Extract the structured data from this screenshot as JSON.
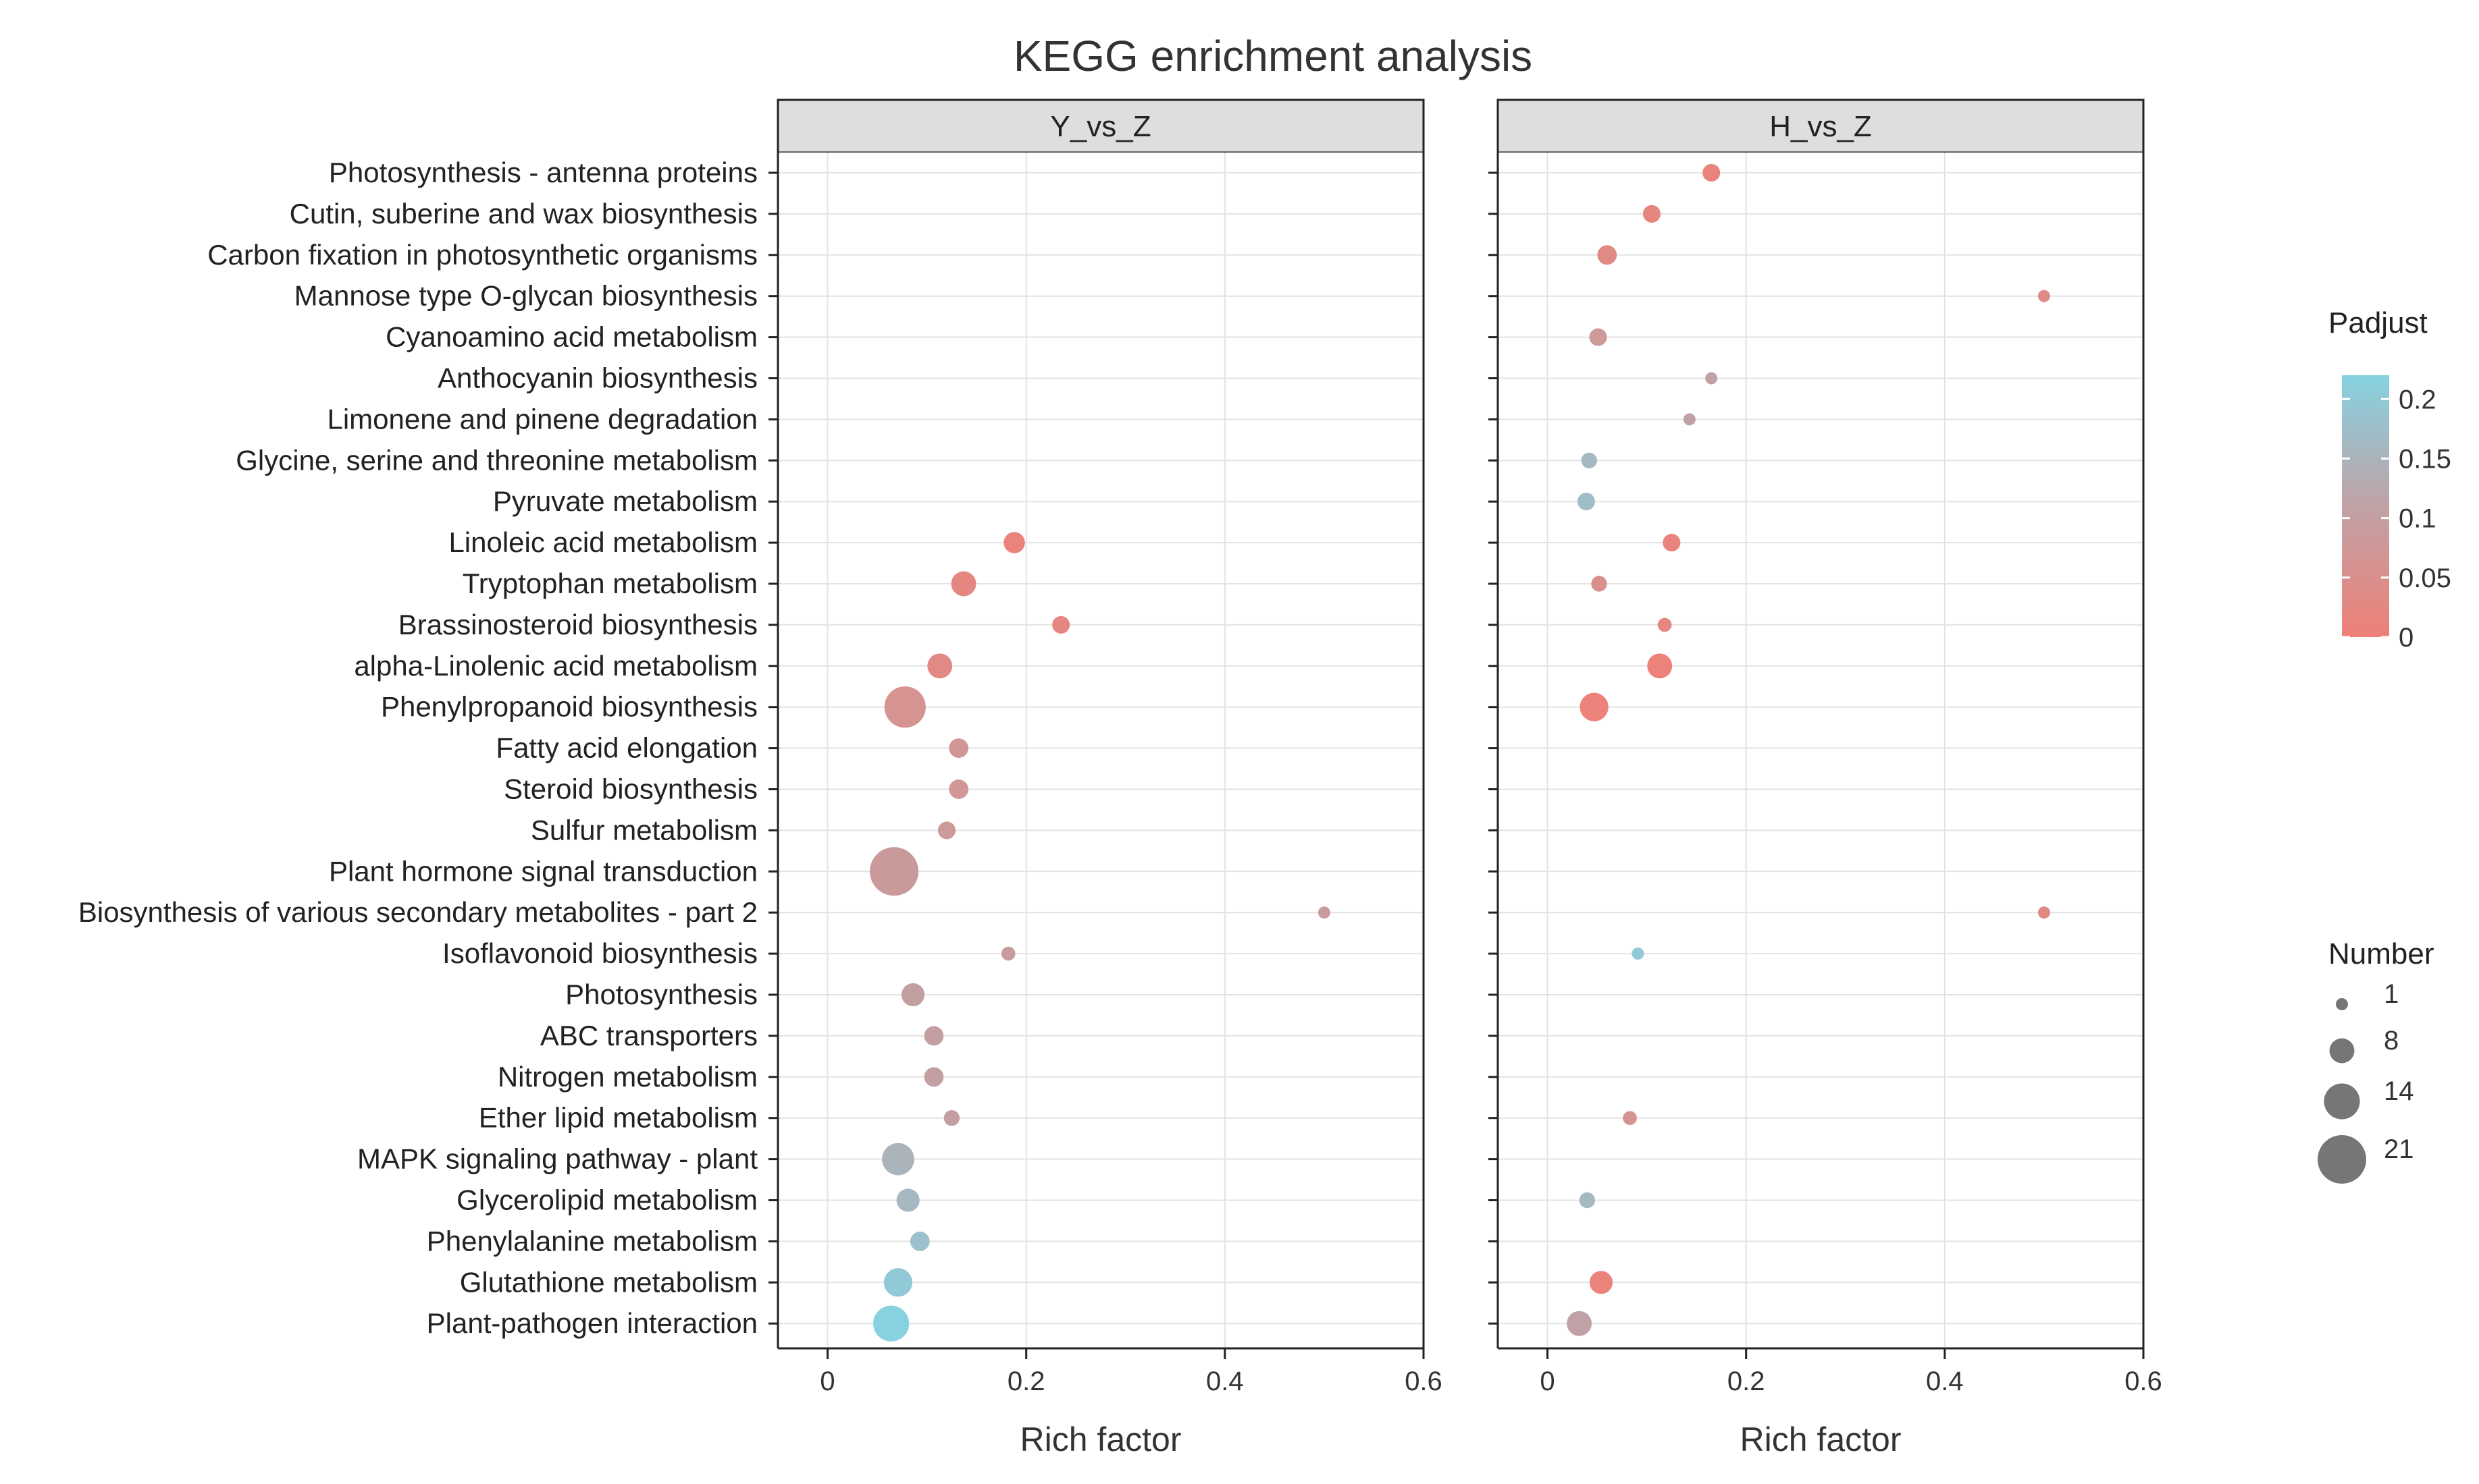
{
  "chart_data": {
    "type": "scatter",
    "title": "KEGG enrichment analysis",
    "xlabel": "Rich factor",
    "xlim": [
      -0.05,
      0.6
    ],
    "xticks": [
      0,
      0.2,
      0.4,
      0.6
    ],
    "xtick_labels": [
      "0",
      "0.2",
      "0.4",
      "0.6"
    ],
    "categories": [
      "Photosynthesis - antenna proteins",
      "Cutin, suberine and wax biosynthesis",
      "Carbon fixation in photosynthetic organisms",
      "Mannose type O-glycan biosynthesis",
      "Cyanoamino acid metabolism",
      "Anthocyanin biosynthesis",
      "Limonene and pinene degradation",
      "Glycine, serine and threonine metabolism",
      "Pyruvate metabolism",
      "Linoleic acid metabolism",
      "Tryptophan metabolism",
      "Brassinosteroid biosynthesis",
      "alpha-Linolenic acid metabolism",
      "Phenylpropanoid biosynthesis",
      "Fatty acid elongation",
      "Steroid biosynthesis",
      "Sulfur metabolism",
      "Plant hormone signal transduction",
      "Biosynthesis of various secondary metabolites - part 2",
      "Isoflavonoid biosynthesis",
      "Photosynthesis",
      "ABC transporters",
      "Nitrogen metabolism",
      "Ether lipid metabolism",
      "MAPK signaling pathway - plant",
      "Glycerolipid metabolism",
      "Phenylalanine metabolism",
      "Glutathione metabolism",
      "Plant-pathogen interaction"
    ],
    "panels": [
      {
        "name": "Y_vs_Z",
        "points": [
          {
            "category": "Linoleic acid metabolism",
            "rich_factor": 0.188,
            "number": 6,
            "padjust": 0.01
          },
          {
            "category": "Tryptophan metabolism",
            "rich_factor": 0.137,
            "number": 8,
            "padjust": 0.02
          },
          {
            "category": "Brassinosteroid biosynthesis",
            "rich_factor": 0.235,
            "number": 4,
            "padjust": 0.02
          },
          {
            "category": "alpha-Linolenic acid metabolism",
            "rich_factor": 0.113,
            "number": 8,
            "padjust": 0.03
          },
          {
            "category": "Phenylpropanoid biosynthesis",
            "rich_factor": 0.078,
            "number": 17,
            "padjust": 0.06
          },
          {
            "category": "Fatty acid elongation",
            "rich_factor": 0.132,
            "number": 5,
            "padjust": 0.07
          },
          {
            "category": "Steroid biosynthesis",
            "rich_factor": 0.132,
            "number": 5,
            "padjust": 0.07
          },
          {
            "category": "Sulfur metabolism",
            "rich_factor": 0.12,
            "number": 4,
            "padjust": 0.08
          },
          {
            "category": "Plant hormone signal transduction",
            "rich_factor": 0.067,
            "number": 21,
            "padjust": 0.085
          },
          {
            "category": "Biosynthesis of various secondary metabolites - part 2",
            "rich_factor": 0.5,
            "number": 1,
            "padjust": 0.09
          },
          {
            "category": "Isoflavonoid biosynthesis",
            "rich_factor": 0.182,
            "number": 2,
            "padjust": 0.09
          },
          {
            "category": "Photosynthesis",
            "rich_factor": 0.086,
            "number": 7,
            "padjust": 0.1
          },
          {
            "category": "ABC transporters",
            "rich_factor": 0.107,
            "number": 5,
            "padjust": 0.1
          },
          {
            "category": "Nitrogen metabolism",
            "rich_factor": 0.107,
            "number": 5,
            "padjust": 0.1
          },
          {
            "category": "Ether lipid metabolism",
            "rich_factor": 0.125,
            "number": 3,
            "padjust": 0.1
          },
          {
            "category": "MAPK signaling pathway - plant",
            "rich_factor": 0.071,
            "number": 12,
            "padjust": 0.15
          },
          {
            "category": "Glycerolipid metabolism",
            "rich_factor": 0.081,
            "number": 7,
            "padjust": 0.16
          },
          {
            "category": "Phenylalanine metabolism",
            "rich_factor": 0.093,
            "number": 5,
            "padjust": 0.18
          },
          {
            "category": "Glutathione metabolism",
            "rich_factor": 0.071,
            "number": 10,
            "padjust": 0.2
          },
          {
            "category": "Plant-pathogen interaction",
            "rich_factor": 0.064,
            "number": 14,
            "padjust": 0.22
          }
        ]
      },
      {
        "name": "H_vs_Z",
        "points": [
          {
            "category": "Photosynthesis - antenna proteins",
            "rich_factor": 0.165,
            "number": 4,
            "padjust": 0.01
          },
          {
            "category": "Cutin, suberine and wax biosynthesis",
            "rich_factor": 0.105,
            "number": 4,
            "padjust": 0.02
          },
          {
            "category": "Carbon fixation in photosynthetic organisms",
            "rich_factor": 0.06,
            "number": 5,
            "padjust": 0.03
          },
          {
            "category": "Mannose type O-glycan biosynthesis",
            "rich_factor": 0.5,
            "number": 1,
            "padjust": 0.03
          },
          {
            "category": "Cyanoamino acid metabolism",
            "rich_factor": 0.051,
            "number": 4,
            "padjust": 0.08
          },
          {
            "category": "Anthocyanin biosynthesis",
            "rich_factor": 0.165,
            "number": 1,
            "padjust": 0.11
          },
          {
            "category": "Limonene and pinene degradation",
            "rich_factor": 0.143,
            "number": 1,
            "padjust": 0.11
          },
          {
            "category": "Glycine, serine and threonine metabolism",
            "rich_factor": 0.042,
            "number": 3,
            "padjust": 0.16
          },
          {
            "category": "Pyruvate metabolism",
            "rich_factor": 0.039,
            "number": 4,
            "padjust": 0.17
          },
          {
            "category": "Linoleic acid metabolism",
            "rich_factor": 0.125,
            "number": 4,
            "padjust": 0.01
          },
          {
            "category": "Tryptophan metabolism",
            "rich_factor": 0.052,
            "number": 3,
            "padjust": 0.05
          },
          {
            "category": "Brassinosteroid biosynthesis",
            "rich_factor": 0.118,
            "number": 2,
            "padjust": 0.02
          },
          {
            "category": "alpha-Linolenic acid metabolism",
            "rich_factor": 0.113,
            "number": 8,
            "padjust": 0.005
          },
          {
            "category": "Phenylpropanoid biosynthesis",
            "rich_factor": 0.047,
            "number": 10,
            "padjust": 0.005
          },
          {
            "category": "Biosynthesis of various secondary metabolites - part 2",
            "rich_factor": 0.5,
            "number": 1,
            "padjust": 0.03
          },
          {
            "category": "Isoflavonoid biosynthesis",
            "rich_factor": 0.091,
            "number": 1,
            "padjust": 0.2
          },
          {
            "category": "Ether lipid metabolism",
            "rich_factor": 0.083,
            "number": 2,
            "padjust": 0.06
          },
          {
            "category": "Glycerolipid metabolism",
            "rich_factor": 0.04,
            "number": 3,
            "padjust": 0.16
          },
          {
            "category": "Glutathione metabolism",
            "rich_factor": 0.054,
            "number": 7,
            "padjust": 0.01
          },
          {
            "category": "Plant-pathogen interaction",
            "rich_factor": 0.032,
            "number": 8,
            "padjust": 0.11
          }
        ]
      }
    ],
    "legend_color": {
      "title": "Padjust",
      "range": [
        0,
        0.22
      ],
      "ticks": [
        0.2,
        0.15,
        0.1,
        0.05,
        0
      ],
      "tick_labels": [
        "0.2",
        "0.15",
        "0.1",
        "0.05",
        "0"
      ],
      "low_color": "#ee8077",
      "mid_color": "#c0a2a6",
      "high_color": "#86d2e1"
    },
    "legend_size": {
      "title": "Number",
      "values": [
        1,
        8,
        14,
        21
      ],
      "labels": [
        "1",
        "8",
        "14",
        "21"
      ]
    },
    "colors": {
      "grid": "#e3e3e3",
      "strip_fill": "#dedede",
      "panel_border": "#222222"
    }
  }
}
